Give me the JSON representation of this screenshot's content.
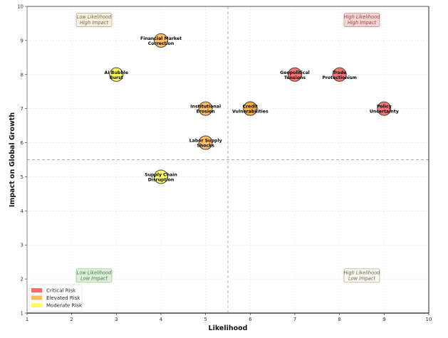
{
  "chart_data": {
    "type": "scatter",
    "title": "",
    "xlabel": "Likelihood",
    "ylabel": "Impact on Global Growth",
    "xlim": [
      1,
      10
    ],
    "ylim": [
      1,
      10
    ],
    "xticks": [
      1,
      2,
      3,
      4,
      5,
      6,
      7,
      8,
      9,
      10
    ],
    "yticks": [
      1,
      2,
      3,
      4,
      5,
      6,
      7,
      8,
      9,
      10
    ],
    "grid": true,
    "threshold_lines": {
      "x": 5.5,
      "y": 5.5
    },
    "categories": {
      "critical": {
        "name": "Critical Risk",
        "color": "#f0484a"
      },
      "elevated": {
        "name": "Elevated Risk",
        "color": "#f7a833"
      },
      "moderate": {
        "name": "Moderate Risk",
        "color": "#ffff33"
      }
    },
    "points": [
      {
        "label_lines": [
          "Financial Market",
          "Correction"
        ],
        "x": 4,
        "y": 9,
        "category": "elevated"
      },
      {
        "label_lines": [
          "AI Bubble",
          "Burst"
        ],
        "x": 3,
        "y": 8,
        "category": "moderate"
      },
      {
        "label_lines": [
          "Geopolitical",
          "Tensions"
        ],
        "x": 7,
        "y": 8,
        "category": "critical"
      },
      {
        "label_lines": [
          "Trade",
          "Protectionism"
        ],
        "x": 8,
        "y": 8,
        "category": "critical"
      },
      {
        "label_lines": [
          "Institutional",
          "Erosion"
        ],
        "x": 5,
        "y": 7,
        "category": "elevated"
      },
      {
        "label_lines": [
          "Credit",
          "Vulnerabilities"
        ],
        "x": 6,
        "y": 7,
        "category": "elevated",
        "overlap": true
      },
      {
        "label_lines": [
          "Policy",
          "Uncertainty"
        ],
        "x": 9,
        "y": 7,
        "category": "critical"
      },
      {
        "label_lines": [
          "Labor Supply",
          "Shocks"
        ],
        "x": 5,
        "y": 6,
        "category": "elevated"
      },
      {
        "label_lines": [
          "Supply Chain",
          "Disruption"
        ],
        "x": 4,
        "y": 5,
        "category": "moderate"
      }
    ],
    "quadrant_labels": [
      {
        "lines": [
          "Low Likelihood",
          "High Impact"
        ],
        "x": 2.5,
        "y": 9.6,
        "bg": "#f5efe0",
        "border": "#b8a880",
        "color": "#7a6a45"
      },
      {
        "lines": [
          "High Likelihood",
          "High Impact"
        ],
        "x": 8.5,
        "y": 9.6,
        "bg": "#f6d3d3",
        "border": "#c88a8a",
        "color": "#8a4b4b"
      },
      {
        "lines": [
          "Low Likelihood",
          "Low Impact"
        ],
        "x": 2.5,
        "y": 2.1,
        "bg": "#daf0d8",
        "border": "#8fc28a",
        "color": "#4b7a46"
      },
      {
        "lines": [
          "High Likelihood",
          "Low Impact"
        ],
        "x": 8.5,
        "y": 2.1,
        "bg": "#fbfaf2",
        "border": "#a8a080",
        "color": "#6a6045"
      }
    ],
    "legend": {
      "placement": "bottom-left",
      "entries": [
        "Critical Risk",
        "Elevated Risk",
        "Moderate Risk"
      ]
    }
  }
}
